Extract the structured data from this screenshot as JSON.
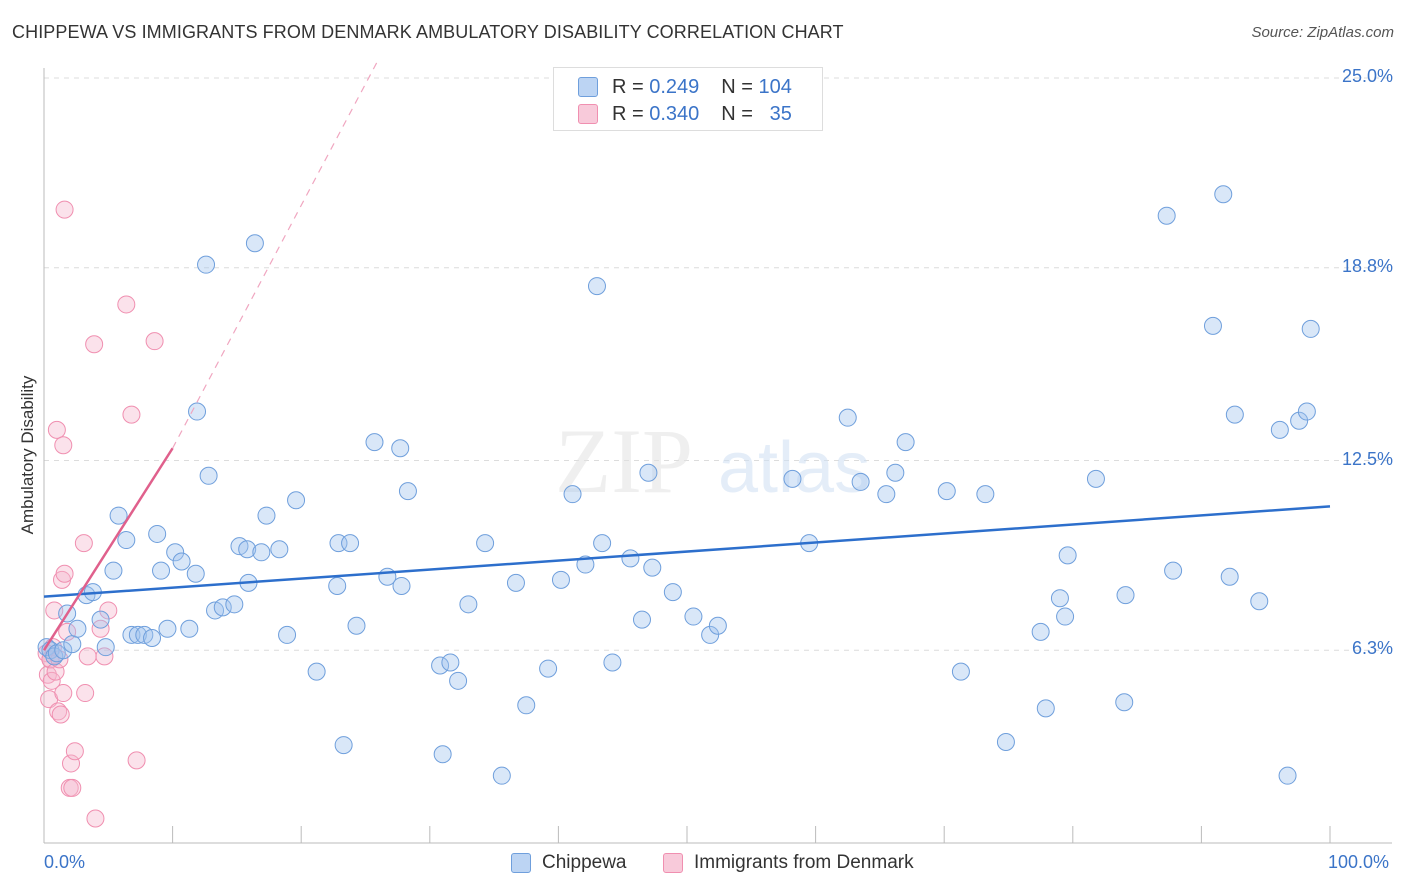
{
  "title": "CHIPPEWA VS IMMIGRANTS FROM DENMARK AMBULATORY DISABILITY CORRELATION CHART",
  "source": "Source: ZipAtlas.com",
  "watermark": {
    "zip": "ZIP",
    "atlas": "atlas"
  },
  "legend": {
    "r_label": "R =",
    "n_label": "N =",
    "rows": [
      {
        "r": "0.249",
        "n": "104"
      },
      {
        "r": "0.340",
        "n": "35"
      }
    ]
  },
  "chart_data": {
    "type": "scatter",
    "title": "CHIPPEWA VS IMMIGRANTS FROM DENMARK AMBULATORY DISABILITY CORRELATION CHART",
    "xlabel": "",
    "ylabel": "Ambulatory Disability",
    "xlim": [
      0,
      100
    ],
    "ylim": [
      0,
      25.8
    ],
    "x_tick_labels": {
      "left": "0.0%",
      "right": "100.0%"
    },
    "y_ticks": [
      {
        "value": 6.3,
        "label": "6.3%"
      },
      {
        "value": 12.5,
        "label": "12.5%"
      },
      {
        "value": 18.8,
        "label": "18.8%"
      },
      {
        "value": 25.0,
        "label": "25.0%"
      }
    ],
    "grid": true,
    "colors": {
      "chippewa": "#6f9fdc",
      "denmark": "#f08fb0",
      "blue_line": "#2d6fcc",
      "pink_line": "#e0608c"
    },
    "series": [
      {
        "name": "Chippewa",
        "trend": {
          "x0": 0,
          "y0": 8.05,
          "x1": 100,
          "y1": 11.0
        },
        "points": [
          [
            0.2,
            6.4
          ],
          [
            0.5,
            6.3
          ],
          [
            0.8,
            6.1
          ],
          [
            1.0,
            6.2
          ],
          [
            1.5,
            6.3
          ],
          [
            1.8,
            7.5
          ],
          [
            2.2,
            6.5
          ],
          [
            2.6,
            7.0
          ],
          [
            3.3,
            8.1
          ],
          [
            3.8,
            8.2
          ],
          [
            4.4,
            7.3
          ],
          [
            4.8,
            6.4
          ],
          [
            5.4,
            8.9
          ],
          [
            5.8,
            10.7
          ],
          [
            6.4,
            9.9
          ],
          [
            6.8,
            6.8
          ],
          [
            7.3,
            6.8
          ],
          [
            7.8,
            6.8
          ],
          [
            8.4,
            6.7
          ],
          [
            8.8,
            10.1
          ],
          [
            9.1,
            8.9
          ],
          [
            9.6,
            7.0
          ],
          [
            10.2,
            9.5
          ],
          [
            10.7,
            9.2
          ],
          [
            11.3,
            7.0
          ],
          [
            11.8,
            8.8
          ],
          [
            11.9,
            14.1
          ],
          [
            12.6,
            18.9
          ],
          [
            12.8,
            12.0
          ],
          [
            13.3,
            7.6
          ],
          [
            13.9,
            7.7
          ],
          [
            14.8,
            7.8
          ],
          [
            15.2,
            9.7
          ],
          [
            15.8,
            9.6
          ],
          [
            15.9,
            8.5
          ],
          [
            16.4,
            19.6
          ],
          [
            16.9,
            9.5
          ],
          [
            17.3,
            10.7
          ],
          [
            18.3,
            9.6
          ],
          [
            18.9,
            6.8
          ],
          [
            19.6,
            11.2
          ],
          [
            21.2,
            5.6
          ],
          [
            22.8,
            8.4
          ],
          [
            22.9,
            9.8
          ],
          [
            23.3,
            3.2
          ],
          [
            23.8,
            9.8
          ],
          [
            24.3,
            7.1
          ],
          [
            25.7,
            13.1
          ],
          [
            26.7,
            8.7
          ],
          [
            27.7,
            12.9
          ],
          [
            27.8,
            8.4
          ],
          [
            28.3,
            11.5
          ],
          [
            30.8,
            5.8
          ],
          [
            31.0,
            2.9
          ],
          [
            31.6,
            5.9
          ],
          [
            32.2,
            5.3
          ],
          [
            33.0,
            7.8
          ],
          [
            34.3,
            9.8
          ],
          [
            35.6,
            2.2
          ],
          [
            36.7,
            8.5
          ],
          [
            37.5,
            4.5
          ],
          [
            39.2,
            5.7
          ],
          [
            40.2,
            8.6
          ],
          [
            41.1,
            11.4
          ],
          [
            42.1,
            9.1
          ],
          [
            43.0,
            18.2
          ],
          [
            43.4,
            9.8
          ],
          [
            44.2,
            5.9
          ],
          [
            45.6,
            9.3
          ],
          [
            46.5,
            7.3
          ],
          [
            47.0,
            12.1
          ],
          [
            47.3,
            9.0
          ],
          [
            48.9,
            8.2
          ],
          [
            50.5,
            7.4
          ],
          [
            51.8,
            6.8
          ],
          [
            52.4,
            7.1
          ],
          [
            58.2,
            11.9
          ],
          [
            59.5,
            9.8
          ],
          [
            62.5,
            13.9
          ],
          [
            63.5,
            11.8
          ],
          [
            65.5,
            11.4
          ],
          [
            66.2,
            12.1
          ],
          [
            67.0,
            13.1
          ],
          [
            70.2,
            11.5
          ],
          [
            71.3,
            5.6
          ],
          [
            73.2,
            11.4
          ],
          [
            74.8,
            3.3
          ],
          [
            77.5,
            6.9
          ],
          [
            77.9,
            4.4
          ],
          [
            79.0,
            8.0
          ],
          [
            79.4,
            7.4
          ],
          [
            79.6,
            9.4
          ],
          [
            81.8,
            11.9
          ],
          [
            84.0,
            4.6
          ],
          [
            84.1,
            8.1
          ],
          [
            87.3,
            20.5
          ],
          [
            87.8,
            8.9
          ],
          [
            90.9,
            16.9
          ],
          [
            91.7,
            21.2
          ],
          [
            92.2,
            8.7
          ],
          [
            92.6,
            14.0
          ],
          [
            94.5,
            7.9
          ],
          [
            96.1,
            13.5
          ],
          [
            96.7,
            2.2
          ],
          [
            97.6,
            13.8
          ],
          [
            98.2,
            14.1
          ],
          [
            98.5,
            16.8
          ]
        ]
      },
      {
        "name": "Immigrants from Denmark",
        "trend": {
          "x0": 0,
          "y0": 6.3,
          "x1": 10,
          "y1": 12.9
        },
        "trend_extension": {
          "x0": 10,
          "y0": 12.9,
          "x1": 26,
          "y1": 25.6
        },
        "points": [
          [
            0.2,
            6.2
          ],
          [
            0.3,
            5.5
          ],
          [
            0.4,
            4.7
          ],
          [
            0.5,
            6.0
          ],
          [
            0.5,
            6.0
          ],
          [
            0.6,
            5.3
          ],
          [
            0.7,
            6.4
          ],
          [
            0.8,
            7.6
          ],
          [
            0.9,
            5.6
          ],
          [
            1.0,
            13.5
          ],
          [
            1.1,
            4.3
          ],
          [
            1.2,
            6.0
          ],
          [
            1.3,
            4.2
          ],
          [
            1.4,
            8.6
          ],
          [
            1.5,
            4.9
          ],
          [
            1.5,
            13.0
          ],
          [
            1.6,
            20.7
          ],
          [
            1.6,
            8.8
          ],
          [
            1.8,
            6.9
          ],
          [
            2.0,
            1.8
          ],
          [
            2.1,
            2.6
          ],
          [
            2.2,
            1.8
          ],
          [
            2.4,
            3.0
          ],
          [
            3.1,
            9.8
          ],
          [
            3.2,
            4.9
          ],
          [
            3.4,
            6.1
          ],
          [
            3.9,
            16.3
          ],
          [
            4.0,
            0.8
          ],
          [
            4.4,
            7.0
          ],
          [
            4.7,
            6.1
          ],
          [
            5.0,
            7.6
          ],
          [
            6.4,
            17.6
          ],
          [
            6.8,
            14.0
          ],
          [
            7.2,
            2.7
          ],
          [
            8.6,
            16.4
          ]
        ]
      }
    ]
  },
  "bottom_legend": {
    "chippewa": "Chippewa",
    "denmark": "Immigrants from Denmark"
  }
}
